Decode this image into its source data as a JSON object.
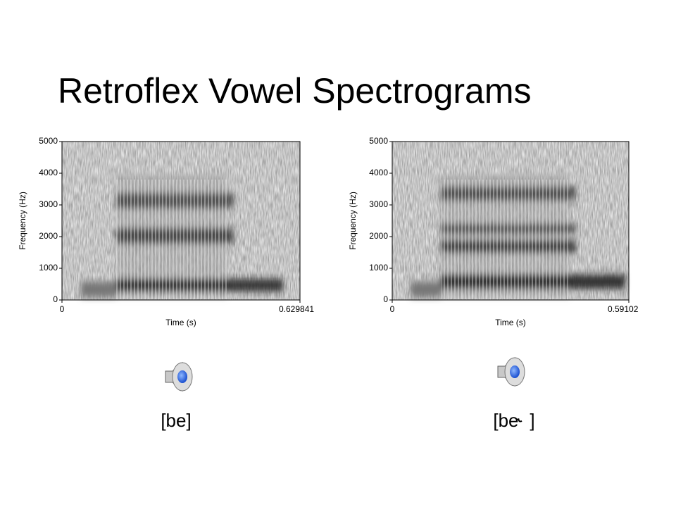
{
  "title": "Retroflex Vowel Spectrograms",
  "spectrograms": [
    {
      "y_label": "Frequency (Hz)",
      "y_ticks": [
        "0",
        "1000",
        "2000",
        "3000",
        "4000",
        "5000"
      ],
      "x_label": "Time (s)",
      "x_ticks": [
        "0",
        "0.629841"
      ],
      "caption": "[be]"
    },
    {
      "y_label": "Frequency (Hz)",
      "y_ticks": [
        "0",
        "1000",
        "2000",
        "3000",
        "4000",
        "5000"
      ],
      "x_label": "Time (s)",
      "x_ticks": [
        "0",
        "0.59102"
      ],
      "caption": "[be˞ ]"
    }
  ]
}
